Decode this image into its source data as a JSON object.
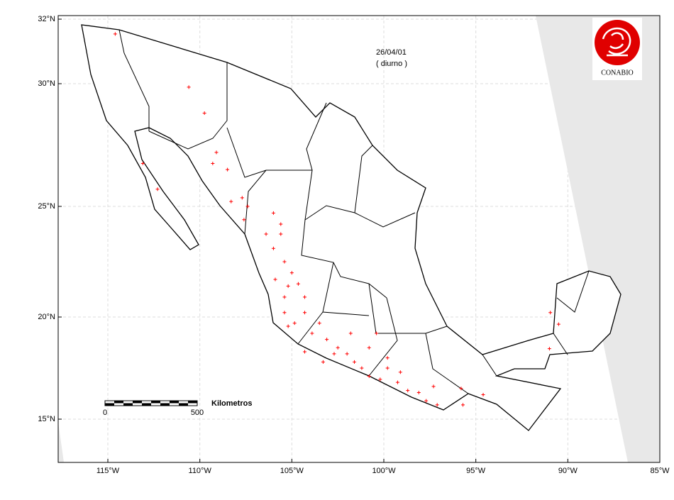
{
  "map": {
    "date": "26/04/01",
    "period": "( diurno )",
    "logo_text": "CONABIO",
    "scale_bar": {
      "unit": "Kilometros",
      "start": "0",
      "end": "500"
    },
    "lonlim": [
      -117.7,
      -85
    ],
    "latlim": [
      12.9,
      32.1
    ],
    "lonticks": [
      {
        "value": -115,
        "label": "115°W"
      },
      {
        "value": -110,
        "label": "110°W"
      },
      {
        "value": -105,
        "label": "105°W"
      },
      {
        "value": -100,
        "label": "100°W"
      },
      {
        "value": -95,
        "label": "95°W"
      },
      {
        "value": -90,
        "label": "90°W"
      },
      {
        "value": -85,
        "label": "85°W"
      }
    ],
    "latticks": [
      {
        "value": 32,
        "label": "32°N"
      },
      {
        "value": 30,
        "label": "30°N"
      },
      {
        "value": 25,
        "label": "25°N"
      },
      {
        "value": 20,
        "label": "20°N"
      },
      {
        "value": 15,
        "label": "15°N"
      }
    ],
    "hotspot_color": "#ff0000",
    "hotspots": {
      "lon": [
        -114.6,
        -110.6,
        -109.75,
        -109.1,
        -108.5,
        -108.3,
        -107.4,
        -107.6,
        -106.4,
        -106.0,
        -105.6,
        -105.4,
        -105.0,
        -105.2,
        -104.65,
        -104.3,
        -105.4,
        -104.85,
        -103.9,
        -103.5,
        -103.1,
        -102.5,
        -102.0,
        -101.6,
        -101.2,
        -100.8,
        -100.2,
        -99.8,
        -99.25,
        -98.7,
        -98.1,
        -97.7,
        -97.1,
        -95.8,
        -94.6,
        -95.7,
        -100.8,
        -99.8,
        -101.8,
        -102.7,
        -104.3,
        -105.2,
        -105.9,
        -105.6,
        -107.7,
        -109.3,
        -113.1,
        -112.3,
        -90.95,
        -90.5,
        -91.0,
        -100.4,
        -103.3,
        -99.1,
        -105.4,
        -106.0,
        -104.3,
        -97.3
      ],
      "lat": [
        31.54,
        29.86,
        28.8,
        27.2,
        26.5,
        25.2,
        25.0,
        24.4,
        23.75,
        23.1,
        23.75,
        22.5,
        22.0,
        21.4,
        21.5,
        20.9,
        20.2,
        19.7,
        19.2,
        19.7,
        18.9,
        18.5,
        18.2,
        17.8,
        17.5,
        17.1,
        16.95,
        17.5,
        16.8,
        16.4,
        16.3,
        15.9,
        15.7,
        16.5,
        16.2,
        15.7,
        18.5,
        18.0,
        19.2,
        18.2,
        18.3,
        19.55,
        21.7,
        24.2,
        25.35,
        26.75,
        26.75,
        25.7,
        20.2,
        19.65,
        18.45,
        19.2,
        17.8,
        17.3,
        20.9,
        24.7,
        20.2,
        16.6
      ]
    }
  }
}
